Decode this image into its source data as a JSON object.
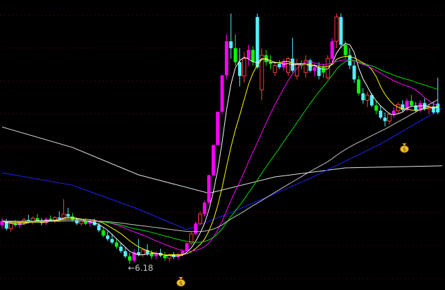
{
  "chart_data": {
    "type": "candlestick",
    "title": "",
    "xlabel": "",
    "ylabel": "",
    "ylim": [
      5.43,
      13.79
    ],
    "grid": true,
    "background": "#000000",
    "colors": {
      "grid": "#8b0000",
      "r": "#ff3b3b",
      "c": "#54f0ff",
      "m": "#ff00ff",
      "g": "#00ff00",
      "ma5": "#ffffff",
      "ma10": "#ffff00",
      "ma20": "#ff00ff",
      "ma30": "#00e000",
      "ma60": "#c8c8c8",
      "long_white": "#e8e8e8",
      "long_blue": "#2020ff"
    },
    "candles": [
      [
        7.3,
        7.5,
        7.2,
        7.42,
        "m"
      ],
      [
        7.42,
        7.48,
        7.15,
        7.2,
        "c"
      ],
      [
        7.2,
        7.4,
        7.1,
        7.35,
        "r"
      ],
      [
        7.35,
        7.45,
        7.25,
        7.3,
        "g"
      ],
      [
        7.3,
        7.42,
        7.22,
        7.38,
        "m"
      ],
      [
        7.38,
        7.52,
        7.3,
        7.45,
        "r"
      ],
      [
        7.45,
        7.6,
        7.35,
        7.4,
        "c"
      ],
      [
        7.4,
        7.55,
        7.32,
        7.5,
        "r"
      ],
      [
        7.5,
        7.62,
        7.38,
        7.42,
        "g"
      ],
      [
        7.42,
        7.5,
        7.3,
        7.36,
        "c"
      ],
      [
        7.36,
        7.52,
        7.3,
        7.48,
        "m"
      ],
      [
        7.48,
        7.58,
        7.4,
        7.44,
        "g"
      ],
      [
        7.44,
        7.56,
        7.36,
        7.52,
        "r"
      ],
      [
        7.52,
        7.7,
        7.45,
        7.48,
        "c"
      ],
      [
        7.48,
        8.05,
        7.45,
        7.62,
        "r"
      ],
      [
        7.62,
        7.8,
        7.5,
        7.55,
        "c"
      ],
      [
        7.55,
        7.65,
        7.4,
        7.45,
        "g"
      ],
      [
        7.45,
        7.52,
        7.3,
        7.35,
        "c"
      ],
      [
        7.35,
        7.48,
        7.28,
        7.42,
        "r"
      ],
      [
        7.42,
        7.5,
        7.3,
        7.34,
        "g"
      ],
      [
        7.34,
        7.46,
        7.25,
        7.4,
        "m"
      ],
      [
        7.4,
        7.48,
        7.28,
        7.3,
        "c"
      ],
      [
        7.3,
        7.38,
        7.1,
        7.15,
        "c"
      ],
      [
        7.15,
        7.25,
        6.95,
        7.0,
        "g"
      ],
      [
        7.0,
        7.12,
        6.85,
        6.9,
        "c"
      ],
      [
        6.9,
        7.05,
        6.75,
        6.8,
        "c"
      ],
      [
        6.8,
        6.92,
        6.62,
        6.68,
        "g"
      ],
      [
        6.68,
        6.78,
        6.5,
        6.55,
        "c"
      ],
      [
        6.55,
        6.65,
        6.35,
        6.4,
        "c"
      ],
      [
        6.4,
        6.5,
        6.18,
        6.28,
        "g"
      ],
      [
        6.28,
        6.6,
        6.22,
        6.52,
        "m"
      ],
      [
        6.52,
        6.9,
        6.4,
        6.45,
        "c"
      ],
      [
        6.45,
        6.62,
        6.38,
        6.58,
        "r"
      ],
      [
        6.58,
        6.75,
        6.42,
        6.48,
        "c"
      ],
      [
        6.48,
        6.58,
        6.32,
        6.4,
        "g"
      ],
      [
        6.4,
        6.55,
        6.3,
        6.5,
        "m"
      ],
      [
        6.5,
        6.62,
        6.38,
        6.42,
        "c"
      ],
      [
        6.42,
        6.52,
        6.28,
        6.35,
        "g"
      ],
      [
        6.35,
        6.48,
        6.25,
        6.44,
        "r"
      ],
      [
        6.44,
        6.52,
        6.32,
        6.38,
        "c"
      ],
      [
        6.38,
        6.5,
        6.3,
        6.46,
        "m"
      ],
      [
        6.46,
        6.6,
        6.4,
        6.55,
        "m"
      ],
      [
        6.55,
        6.8,
        6.5,
        6.78,
        "m"
      ],
      [
        6.78,
        7.1,
        6.72,
        7.05,
        "r"
      ],
      [
        7.05,
        7.4,
        7.0,
        7.35,
        "m"
      ],
      [
        7.35,
        7.7,
        7.3,
        7.62,
        "r"
      ],
      [
        7.62,
        8.0,
        7.55,
        7.95,
        "m"
      ],
      [
        7.95,
        8.75,
        7.9,
        8.74,
        "m"
      ],
      [
        8.74,
        9.62,
        8.7,
        9.61,
        "m"
      ],
      [
        9.61,
        10.57,
        9.6,
        10.57,
        "m"
      ],
      [
        10.57,
        11.63,
        10.5,
        11.62,
        "m"
      ],
      [
        11.62,
        12.8,
        11.5,
        12.6,
        "m"
      ],
      [
        12.6,
        13.4,
        12.1,
        12.4,
        "c"
      ],
      [
        12.4,
        12.8,
        11.9,
        12.0,
        "g"
      ],
      [
        12.0,
        12.4,
        11.3,
        11.6,
        "c"
      ],
      [
        11.6,
        12.3,
        11.4,
        12.1,
        "r"
      ],
      [
        12.1,
        12.5,
        11.9,
        12.35,
        "m"
      ],
      [
        12.35,
        12.45,
        11.9,
        12.0,
        "g"
      ],
      [
        13.3,
        13.4,
        11.8,
        11.85,
        "c"
      ],
      [
        11.2,
        12.4,
        10.9,
        12.2,
        "r"
      ],
      [
        12.2,
        12.35,
        11.9,
        12.0,
        "g"
      ],
      [
        12.0,
        12.2,
        11.8,
        11.95,
        "g"
      ],
      [
        11.7,
        12.0,
        11.6,
        11.9,
        "r"
      ],
      [
        11.95,
        12.05,
        11.8,
        11.85,
        "c"
      ],
      [
        11.85,
        12.1,
        11.75,
        12.0,
        "m"
      ],
      [
        11.7,
        12.15,
        11.6,
        12.1,
        "r"
      ],
      [
        12.1,
        12.7,
        11.7,
        11.75,
        "c"
      ],
      [
        11.6,
        12.1,
        11.5,
        11.95,
        "r"
      ],
      [
        11.95,
        12.05,
        11.8,
        11.9,
        "g"
      ],
      [
        11.7,
        12.2,
        11.55,
        12.05,
        "r"
      ],
      [
        12.05,
        12.1,
        11.7,
        11.75,
        "c"
      ],
      [
        11.75,
        11.95,
        11.6,
        11.85,
        "m"
      ],
      [
        11.85,
        12.0,
        11.5,
        11.6,
        "c"
      ],
      [
        11.85,
        11.95,
        11.55,
        11.7,
        "g"
      ],
      [
        11.55,
        12.2,
        11.5,
        12.1,
        "r"
      ],
      [
        12.1,
        12.7,
        12.0,
        12.6,
        "m"
      ],
      [
        12.6,
        13.4,
        12.4,
        13.3,
        "r"
      ],
      [
        13.3,
        13.4,
        12.4,
        12.5,
        "c"
      ],
      [
        12.5,
        12.6,
        12.1,
        12.2,
        "g"
      ],
      [
        12.2,
        12.4,
        11.8,
        11.9,
        "c"
      ],
      [
        11.9,
        12.0,
        11.4,
        11.5,
        "c"
      ],
      [
        11.5,
        11.6,
        11.05,
        11.1,
        "g"
      ],
      [
        11.1,
        11.25,
        10.8,
        10.9,
        "c"
      ],
      [
        10.9,
        11.15,
        10.7,
        11.05,
        "r"
      ],
      [
        11.05,
        11.1,
        10.7,
        10.75,
        "c"
      ],
      [
        10.75,
        10.9,
        10.5,
        10.6,
        "g"
      ],
      [
        10.6,
        10.75,
        10.35,
        10.4,
        "c"
      ],
      [
        10.4,
        10.55,
        10.15,
        10.3,
        "c"
      ],
      [
        10.3,
        10.55,
        10.2,
        10.5,
        "r"
      ],
      [
        10.5,
        10.7,
        10.4,
        10.6,
        "m"
      ],
      [
        10.6,
        10.85,
        10.5,
        10.78,
        "r"
      ],
      [
        10.78,
        10.9,
        10.55,
        10.62,
        "c"
      ],
      [
        10.62,
        10.95,
        10.58,
        10.88,
        "m"
      ],
      [
        10.88,
        11.05,
        10.7,
        10.75,
        "g"
      ],
      [
        10.75,
        10.85,
        10.55,
        10.6,
        "c"
      ],
      [
        10.6,
        10.9,
        10.55,
        10.82,
        "m"
      ],
      [
        10.82,
        10.95,
        10.6,
        10.65,
        "c"
      ],
      [
        10.65,
        10.8,
        10.5,
        10.72,
        "r"
      ],
      [
        10.72,
        10.85,
        10.5,
        10.55,
        "c"
      ],
      [
        10.55,
        11.55,
        10.5,
        10.8,
        "c"
      ]
    ],
    "moving_averages": [
      5,
      10,
      20,
      30,
      60
    ],
    "long_lines": [
      {
        "key": "long_white",
        "points": [
          [
            0,
            10.13
          ],
          [
            16,
            9.54
          ],
          [
            31,
            8.75
          ],
          [
            47,
            8.22
          ],
          [
            62,
            8.69
          ],
          [
            78,
            8.95
          ],
          [
            100,
            9.01
          ]
        ]
      },
      {
        "key": "long_blue",
        "points": [
          [
            0,
            8.81
          ],
          [
            16,
            8.45
          ],
          [
            31,
            7.76
          ],
          [
            42,
            7.17
          ],
          [
            52,
            7.66
          ],
          [
            70,
            8.65
          ],
          [
            86,
            9.64
          ],
          [
            100,
            10.67
          ]
        ]
      }
    ],
    "annotations": {
      "low_label": "6.18",
      "low_arrow": "←",
      "markers": [
        "money-bag-icon",
        "money-bag-icon"
      ]
    }
  }
}
